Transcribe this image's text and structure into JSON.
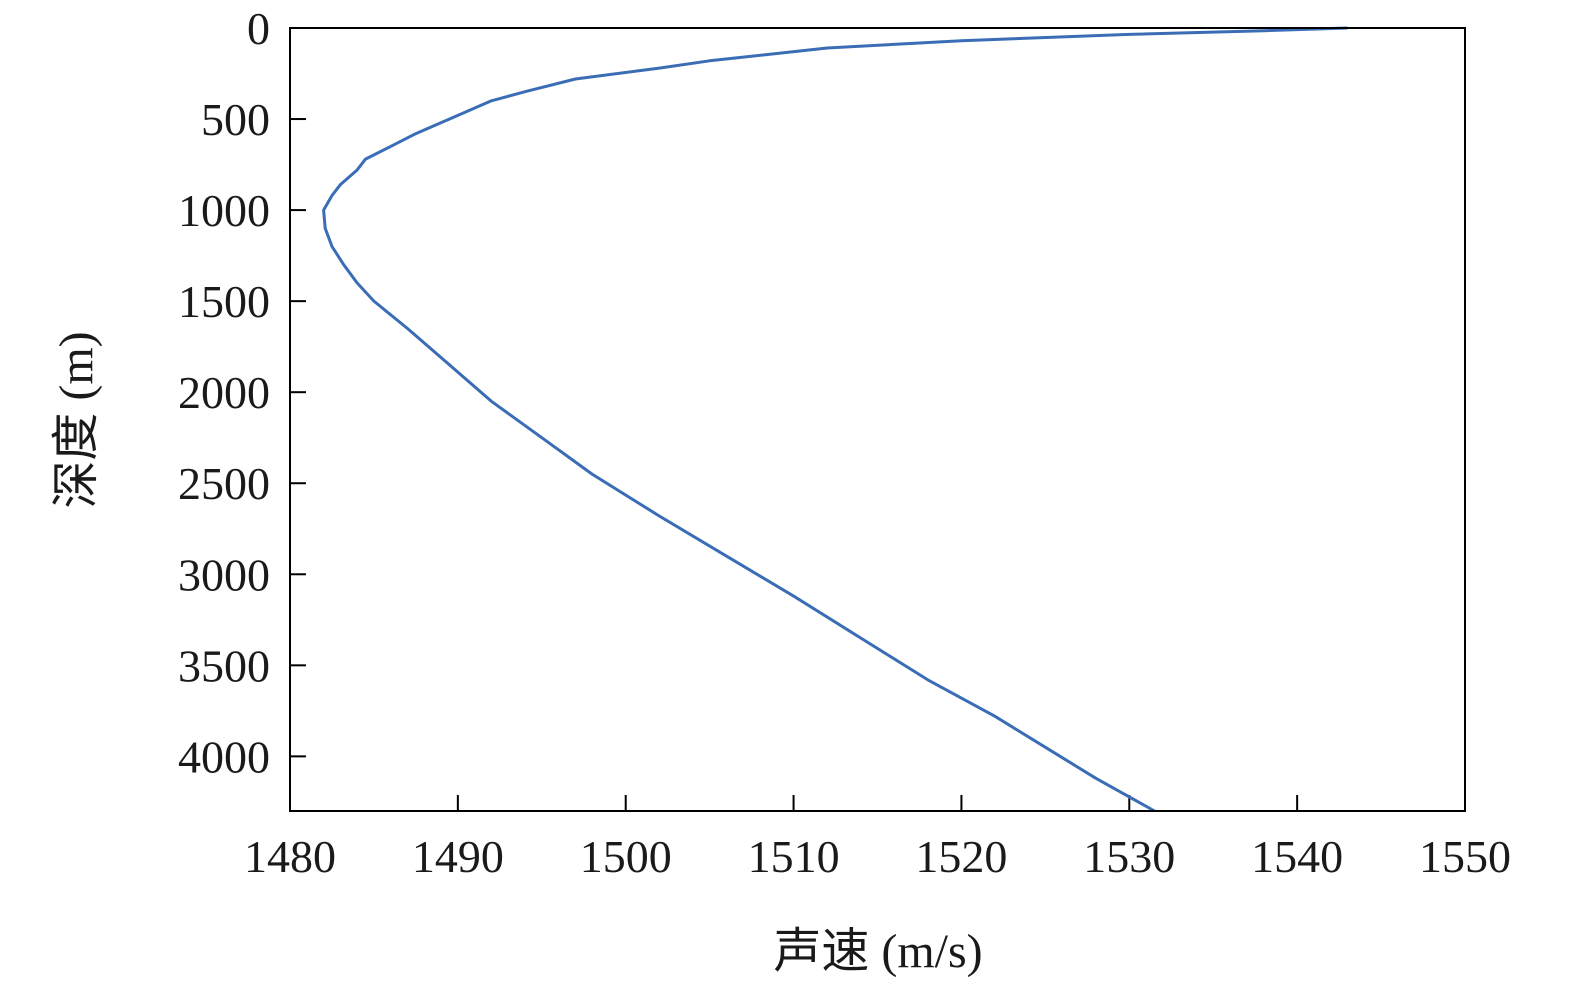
{
  "chart_data": {
    "type": "line",
    "title": "",
    "xlabel": "声速 (m/s)",
    "ylabel": "深度 (m)",
    "xlim": [
      1480,
      1550
    ],
    "ylim": [
      0,
      4300
    ],
    "y_inverted": true,
    "grid": false,
    "legend": "none",
    "x_ticks": [
      1480,
      1490,
      1500,
      1510,
      1520,
      1530,
      1540,
      1550
    ],
    "y_ticks": [
      0,
      500,
      1000,
      1500,
      2000,
      2500,
      3000,
      3500,
      4000
    ],
    "line_color": "#3a6db5",
    "series": [
      {
        "x": [
          1543,
          1538,
          1530,
          1520,
          1512,
          1505,
          1502,
          1497,
          1494,
          1492,
          1490,
          1487.5,
          1486,
          1484.5,
          1484,
          1483,
          1482.5,
          1482,
          1482.1,
          1482.5,
          1483.2,
          1484,
          1485,
          1487,
          1489.5,
          1492,
          1495,
          1498,
          1502,
          1506,
          1510,
          1514,
          1518,
          1522,
          1525,
          1528,
          1531.5
        ],
        "y": [
          0,
          15,
          35,
          70,
          110,
          180,
          220,
          280,
          350,
          400,
          480,
          580,
          650,
          720,
          780,
          860,
          920,
          1000,
          1100,
          1200,
          1300,
          1400,
          1500,
          1650,
          1850,
          2050,
          2250,
          2450,
          2680,
          2900,
          3120,
          3350,
          3580,
          3780,
          3950,
          4120,
          4300
        ]
      }
    ]
  }
}
